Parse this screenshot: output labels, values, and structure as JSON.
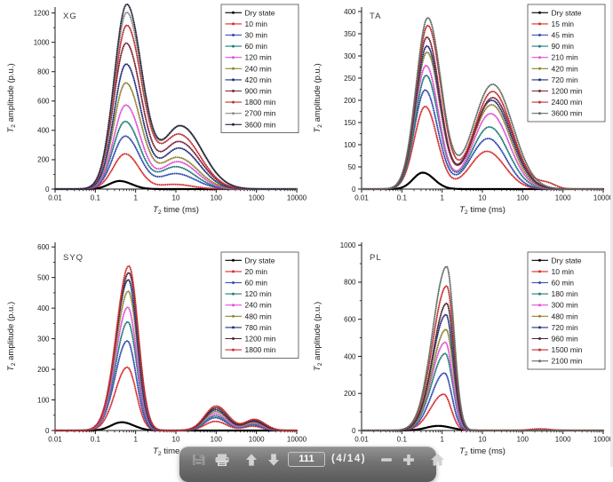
{
  "toolbar": {
    "page_input": "111",
    "page_indicator": "(4/14)",
    "colors": {
      "bar_top": "#929292",
      "bar_bottom": "#5a5a5a",
      "icon": "#d0d0d0",
      "icon_disabled": "#c7c7c7",
      "text": "#ffffff"
    },
    "icons": [
      "save-icon",
      "print-icon",
      "arrow-up-icon",
      "arrow-down-icon",
      "zoom-out-icon",
      "zoom-in-icon",
      "home-icon"
    ]
  },
  "chart_data": [
    {
      "type": "line",
      "panel_label": "XG",
      "xlabel": "T2 time (ms)",
      "ylabel": "T2 amplitude (p.u.)",
      "x_scale": "log",
      "xlim": [
        0.01,
        10000
      ],
      "x_ticks": [
        "0.01",
        "0.1",
        "1",
        "10",
        "100",
        "1000",
        "10000"
      ],
      "ylim": [
        0,
        1240
      ],
      "y_ticks": [
        0,
        200,
        400,
        600,
        800,
        1000,
        1200
      ],
      "legend_position": "top-right",
      "grid": false,
      "note": "peaks = [center_ms, sigma_left_decades, sigma_right_decades, amplitude_pu]",
      "series": [
        {
          "name": "Dry state",
          "color": "#000000",
          "style": "solid",
          "peaks": [
            [
              0.4,
              0.26,
              0.3,
              55
            ]
          ]
        },
        {
          "name": "10 min",
          "color": "#d92b2b",
          "style": "dotted",
          "peaks": [
            [
              0.55,
              0.3,
              0.34,
              240
            ],
            [
              9,
              0.35,
              0.45,
              32
            ]
          ]
        },
        {
          "name": "30 min",
          "color": "#3148b0",
          "style": "dotted",
          "peaks": [
            [
              0.55,
              0.3,
              0.36,
              360
            ],
            [
              10,
              0.4,
              0.48,
              105
            ]
          ]
        },
        {
          "name": "60 min",
          "color": "#1e7d7a",
          "style": "dotted",
          "peaks": [
            [
              0.55,
              0.3,
              0.36,
              460
            ],
            [
              10,
              0.4,
              0.48,
              152
            ]
          ]
        },
        {
          "name": "120 min",
          "color": "#e24fd8",
          "style": "dotted",
          "peaks": [
            [
              0.57,
              0.3,
              0.36,
              572
            ],
            [
              11,
              0.4,
              0.48,
              186
            ]
          ]
        },
        {
          "name": "240 min",
          "color": "#8f8530",
          "style": "dotted",
          "peaks": [
            [
              0.57,
              0.3,
              0.37,
              722
            ],
            [
              11,
              0.42,
              0.5,
              215
            ]
          ]
        },
        {
          "name": "420 min",
          "color": "#20307e",
          "style": "dotted",
          "peaks": [
            [
              0.58,
              0.3,
              0.37,
              850
            ],
            [
              12,
              0.42,
              0.5,
              278
            ]
          ]
        },
        {
          "name": "900 min",
          "color": "#7c2236",
          "style": "dotted",
          "peaks": [
            [
              0.58,
              0.31,
              0.38,
              992
            ],
            [
              12,
              0.42,
              0.52,
              322
            ]
          ]
        },
        {
          "name": "1800 min",
          "color": "#c03030",
          "style": "dotted",
          "peaks": [
            [
              0.6,
              0.31,
              0.38,
              1112
            ],
            [
              12,
              0.44,
              0.52,
              372
            ]
          ]
        },
        {
          "name": "2700 min",
          "color": "#8b8b8b",
          "style": "dotted",
          "peaks": [
            [
              0.6,
              0.31,
              0.38,
              1200
            ],
            [
              13,
              0.44,
              0.54,
              428
            ]
          ]
        },
        {
          "name": "3600 min",
          "color": "#24243a",
          "style": "dotted",
          "peaks": [
            [
              0.6,
              0.31,
              0.38,
              1255
            ],
            [
              13,
              0.44,
              0.54,
              430
            ]
          ]
        }
      ]
    },
    {
      "type": "line",
      "panel_label": "TA",
      "xlabel": "T2 time (ms)",
      "ylabel": "T2 amplitude (p.u.)",
      "x_scale": "log",
      "xlim": [
        0.01,
        10000
      ],
      "x_ticks": [
        "0.01",
        "0.1",
        "1",
        "10",
        "100",
        "1000",
        "10000"
      ],
      "ylim": [
        0,
        410
      ],
      "y_ticks": [
        0,
        50,
        100,
        150,
        200,
        250,
        300,
        350,
        400
      ],
      "legend_position": "top-right",
      "grid": false,
      "series": [
        {
          "name": "Dry state",
          "color": "#000000",
          "style": "solid",
          "peaks": [
            [
              0.33,
              0.24,
              0.28,
              37
            ]
          ]
        },
        {
          "name": "15 min",
          "color": "#d92b2b",
          "style": "dotted",
          "peaks": [
            [
              0.38,
              0.27,
              0.3,
              186
            ],
            [
              13,
              0.42,
              0.44,
              85
            ]
          ]
        },
        {
          "name": "45 min",
          "color": "#3148b0",
          "style": "dotted",
          "peaks": [
            [
              0.38,
              0.27,
              0.31,
              223
            ],
            [
              14,
              0.44,
              0.44,
              114
            ]
          ]
        },
        {
          "name": "90 min",
          "color": "#1e7d7a",
          "style": "dotted",
          "peaks": [
            [
              0.4,
              0.27,
              0.31,
              256
            ],
            [
              15,
              0.44,
              0.46,
              140
            ]
          ]
        },
        {
          "name": "210 min",
          "color": "#e24fd8",
          "style": "dotted",
          "peaks": [
            [
              0.4,
              0.28,
              0.31,
              278
            ],
            [
              16,
              0.44,
              0.46,
              170
            ]
          ]
        },
        {
          "name": "420 min",
          "color": "#8f8530",
          "style": "dotted",
          "peaks": [
            [
              0.42,
              0.28,
              0.32,
              308
            ],
            [
              17,
              0.46,
              0.46,
              190
            ]
          ]
        },
        {
          "name": "720 min",
          "color": "#20307e",
          "style": "dotted",
          "peaks": [
            [
              0.42,
              0.28,
              0.32,
              322
            ],
            [
              17,
              0.46,
              0.48,
              200
            ]
          ]
        },
        {
          "name": "1200 min",
          "color": "#7c2236",
          "style": "dotted",
          "peaks": [
            [
              0.42,
              0.28,
              0.32,
              342
            ],
            [
              18,
              0.46,
              0.48,
              206
            ]
          ]
        },
        {
          "name": "2400 min",
          "color": "#c03030",
          "style": "dotted",
          "peaks": [
            [
              0.44,
              0.29,
              0.33,
              368
            ],
            [
              18,
              0.46,
              0.48,
              220
            ],
            [
              400,
              0.22,
              0.22,
              12
            ]
          ]
        },
        {
          "name": "3600 min",
          "color": "#5e6e64",
          "style": "dotted",
          "peaks": [
            [
              0.44,
              0.29,
              0.33,
              385
            ],
            [
              18,
              0.48,
              0.5,
              236
            ]
          ]
        }
      ]
    },
    {
      "type": "line",
      "panel_label": "SYQ",
      "xlabel": "T2 time (ms)",
      "ylabel": "T2 amplitude (p.u.)",
      "x_scale": "log",
      "xlim": [
        0.01,
        10000
      ],
      "x_ticks": [
        "0.01",
        "0.1",
        "1",
        "10",
        "100",
        "1000",
        "10000"
      ],
      "ylim": [
        0,
        615
      ],
      "y_ticks": [
        0,
        100,
        200,
        300,
        400,
        500,
        600
      ],
      "legend_position": "top-right",
      "grid": false,
      "series": [
        {
          "name": "Dry state",
          "color": "#000000",
          "style": "solid",
          "peaks": [
            [
              0.45,
              0.26,
              0.3,
              27
            ]
          ]
        },
        {
          "name": "20 min",
          "color": "#d92b2b",
          "style": "dotted",
          "peaks": [
            [
              0.62,
              0.3,
              0.22,
              207
            ],
            [
              95,
              0.26,
              0.28,
              30
            ],
            [
              800,
              0.22,
              0.24,
              14
            ]
          ]
        },
        {
          "name": "60 min",
          "color": "#3148b0",
          "style": "dotted",
          "peaks": [
            [
              0.62,
              0.3,
              0.22,
              293
            ],
            [
              95,
              0.26,
              0.28,
              42
            ],
            [
              800,
              0.22,
              0.24,
              18
            ]
          ]
        },
        {
          "name": "120 min",
          "color": "#1e7d7a",
          "style": "dotted",
          "peaks": [
            [
              0.64,
              0.3,
              0.22,
              355
            ],
            [
              95,
              0.26,
              0.28,
              48
            ],
            [
              820,
              0.22,
              0.24,
              20
            ]
          ]
        },
        {
          "name": "240 min",
          "color": "#e24fd8",
          "style": "dotted",
          "peaks": [
            [
              0.64,
              0.3,
              0.22,
              403
            ],
            [
              95,
              0.27,
              0.28,
              55
            ],
            [
              820,
              0.22,
              0.24,
              24
            ]
          ]
        },
        {
          "name": "480 min",
          "color": "#8f8530",
          "style": "dotted",
          "peaks": [
            [
              0.66,
              0.31,
              0.22,
              455
            ],
            [
              97,
              0.27,
              0.29,
              62
            ],
            [
              850,
              0.23,
              0.25,
              27
            ]
          ]
        },
        {
          "name": "780 min",
          "color": "#20307e",
          "style": "dotted",
          "peaks": [
            [
              0.66,
              0.31,
              0.22,
              493
            ],
            [
              97,
              0.27,
              0.29,
              68
            ],
            [
              850,
              0.23,
              0.25,
              30
            ]
          ]
        },
        {
          "name": "1200 min",
          "color": "#4a2430",
          "style": "dotted",
          "peaks": [
            [
              0.68,
              0.31,
              0.23,
              516
            ],
            [
              100,
              0.28,
              0.29,
              74
            ],
            [
              880,
              0.23,
              0.25,
              33
            ]
          ]
        },
        {
          "name": "1800 min",
          "color": "#cf2e2e",
          "style": "dotted",
          "peaks": [
            [
              0.68,
              0.31,
              0.23,
              538
            ],
            [
              100,
              0.28,
              0.3,
              80
            ],
            [
              900,
              0.24,
              0.26,
              36
            ]
          ]
        }
      ]
    },
    {
      "type": "line",
      "panel_label": "PL",
      "xlabel": "T2 time (ms)",
      "ylabel": "T2 amplitude (p.u.)",
      "x_scale": "log",
      "xlim": [
        0.01,
        10000
      ],
      "x_ticks": [
        "0.01",
        "0.1",
        "1",
        "10",
        "100",
        "1000",
        "10000"
      ],
      "ylim": [
        0,
        1015
      ],
      "y_ticks": [
        0,
        200,
        400,
        600,
        800,
        1000
      ],
      "legend_position": "top-right",
      "grid": false,
      "series": [
        {
          "name": "Dry state",
          "color": "#000000",
          "style": "solid",
          "peaks": [
            [
              0.8,
              0.3,
              0.32,
              25
            ]
          ]
        },
        {
          "name": "10 min",
          "color": "#d92b2b",
          "style": "dotted",
          "peaks": [
            [
              1.1,
              0.33,
              0.18,
              196
            ]
          ]
        },
        {
          "name": "60 min",
          "color": "#3148b0",
          "style": "dotted",
          "peaks": [
            [
              1.15,
              0.33,
              0.18,
              310
            ]
          ]
        },
        {
          "name": "180 min",
          "color": "#1e7d7a",
          "style": "dotted",
          "peaks": [
            [
              1.2,
              0.34,
              0.18,
              415
            ]
          ]
        },
        {
          "name": "300 min",
          "color": "#e24fd8",
          "style": "dotted",
          "peaks": [
            [
              1.2,
              0.34,
              0.18,
              476
            ]
          ]
        },
        {
          "name": "480 min",
          "color": "#8f8530",
          "style": "dotted",
          "peaks": [
            [
              1.25,
              0.34,
              0.18,
              545
            ]
          ]
        },
        {
          "name": "720 min",
          "color": "#20307e",
          "style": "dotted",
          "peaks": [
            [
              1.25,
              0.34,
              0.18,
              625
            ]
          ]
        },
        {
          "name": "960 min",
          "color": "#4a2430",
          "style": "dotted",
          "peaks": [
            [
              1.3,
              0.34,
              0.18,
              686
            ]
          ]
        },
        {
          "name": "1500 min",
          "color": "#c03030",
          "style": "dotted",
          "peaks": [
            [
              1.3,
              0.35,
              0.18,
              780
            ],
            [
              260,
              0.25,
              0.28,
              9
            ]
          ]
        },
        {
          "name": "2100 min",
          "color": "#5e6e64",
          "style": "dotted",
          "peaks": [
            [
              1.3,
              0.35,
              0.18,
              885
            ]
          ]
        }
      ]
    }
  ]
}
